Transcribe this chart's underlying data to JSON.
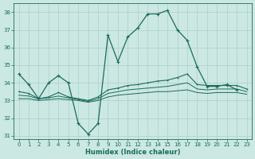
{
  "x": [
    0,
    1,
    2,
    3,
    4,
    5,
    6,
    7,
    8,
    9,
    10,
    11,
    12,
    13,
    14,
    15,
    16,
    17,
    18,
    19,
    20,
    21,
    22,
    23
  ],
  "line1": [
    34.5,
    33.9,
    33.1,
    34.0,
    34.4,
    34.0,
    31.7,
    31.1,
    31.7,
    36.7,
    35.2,
    36.6,
    37.1,
    37.9,
    37.9,
    38.1,
    37.0,
    36.4,
    34.9,
    33.8,
    33.8,
    33.9,
    33.6,
    null
  ],
  "line2": [
    33.5,
    33.4,
    33.1,
    33.2,
    33.45,
    33.2,
    33.1,
    33.0,
    33.2,
    33.6,
    33.7,
    33.85,
    33.9,
    34.0,
    34.1,
    34.15,
    34.3,
    34.5,
    33.9,
    33.85,
    33.85,
    33.85,
    33.85,
    33.65
  ],
  "line3": [
    33.3,
    33.25,
    33.1,
    33.15,
    33.25,
    33.15,
    33.05,
    32.95,
    33.1,
    33.4,
    33.5,
    33.6,
    33.65,
    33.7,
    33.75,
    33.8,
    33.9,
    34.0,
    33.65,
    33.6,
    33.65,
    33.65,
    33.65,
    33.5
  ],
  "line4": [
    33.1,
    33.1,
    33.0,
    33.05,
    33.1,
    33.05,
    33.0,
    32.9,
    33.0,
    33.2,
    33.3,
    33.35,
    33.4,
    33.45,
    33.5,
    33.5,
    33.55,
    33.6,
    33.45,
    33.4,
    33.45,
    33.45,
    33.45,
    33.35
  ],
  "color": "#1a6b5a",
  "bg_color": "#cce8e3",
  "grid_color": "#aacfca",
  "ylim": [
    30.8,
    38.5
  ],
  "xlim": [
    -0.5,
    23.5
  ],
  "xlabel": "Humidex (Indice chaleur)",
  "yticks": [
    31,
    32,
    33,
    34,
    35,
    36,
    37,
    38
  ],
  "xticks": [
    0,
    1,
    2,
    3,
    4,
    5,
    6,
    7,
    8,
    9,
    10,
    11,
    12,
    13,
    14,
    15,
    16,
    17,
    18,
    19,
    20,
    21,
    22,
    23
  ]
}
